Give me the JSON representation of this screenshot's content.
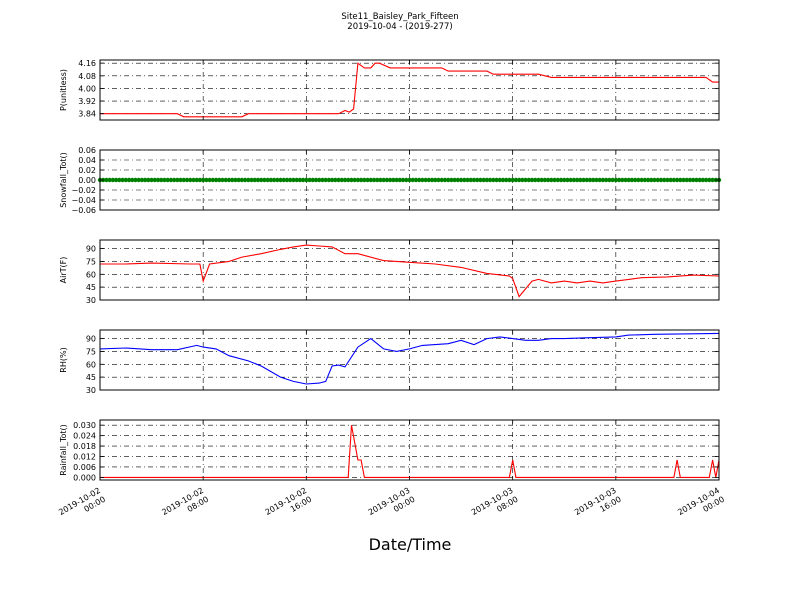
{
  "figure": {
    "title": "Site11_Baisley_Park_Fifteen",
    "subtitle": "2019-10-04 - (2019-277)",
    "xlabel": "Date/Time"
  },
  "chart_data": [
    {
      "type": "line",
      "ylabel": "P(unitless)",
      "ylim": [
        3.8,
        4.18
      ],
      "yticks": [
        "3.84",
        "3.92",
        "4.00",
        "4.08",
        "4.16"
      ],
      "grid": true,
      "series": [
        {
          "color": "#ff0000",
          "x": [
            "2019-10-02 00:00",
            "2019-10-02 06:00",
            "2019-10-02 06:30",
            "2019-10-02 11:00",
            "2019-10-02 11:30",
            "2019-10-02 14:00",
            "2019-10-02 18:30",
            "2019-10-02 19:00",
            "2019-10-02 19:20",
            "2019-10-02 19:40",
            "2019-10-02 20:00",
            "2019-10-02 20:30",
            "2019-10-02 21:00",
            "2019-10-02 21:20",
            "2019-10-02 21:40",
            "2019-10-02 22:30",
            "2019-10-03 02:30",
            "2019-10-03 03:00",
            "2019-10-03 06:00",
            "2019-10-03 06:30",
            "2019-10-03 10:00",
            "2019-10-03 11:00",
            "2019-10-03 20:00",
            "2019-10-03 23:00",
            "2019-10-03 23:30",
            "2019-10-04 00:00"
          ],
          "values": [
            3.84,
            3.84,
            3.82,
            3.82,
            3.84,
            3.84,
            3.84,
            3.86,
            3.85,
            3.87,
            4.16,
            4.13,
            4.13,
            4.16,
            4.16,
            4.13,
            4.13,
            4.11,
            4.11,
            4.09,
            4.09,
            4.07,
            4.07,
            4.07,
            4.04,
            4.04
          ]
        }
      ]
    },
    {
      "type": "scatter",
      "ylabel": "Snowfall_Tot()",
      "ylim": [
        -0.06,
        0.06
      ],
      "yticks": [
        "−0.06",
        "−0.04",
        "−0.02",
        "0.00",
        "0.02",
        "0.04",
        "0.06"
      ],
      "grid": true,
      "series": [
        {
          "color": "#008000",
          "x_start": "2019-10-02 00:00",
          "x_end": "2019-10-04 00:00",
          "interval_minutes": 15,
          "value": 0.0
        }
      ]
    },
    {
      "type": "line",
      "ylabel": "AirT(F)",
      "ylim": [
        30,
        100
      ],
      "yticks": [
        "30",
        "45",
        "60",
        "75",
        "90"
      ],
      "grid": true,
      "series": [
        {
          "color": "#ff0000",
          "x": [
            "2019-10-02 00:00",
            "2019-10-02 02:00",
            "2019-10-02 04:00",
            "2019-10-02 07:00",
            "2019-10-02 07:45",
            "2019-10-02 08:00",
            "2019-10-02 08:30",
            "2019-10-02 09:30",
            "2019-10-02 10:00",
            "2019-10-02 11:00",
            "2019-10-02 12:30",
            "2019-10-02 14:00",
            "2019-10-02 15:00",
            "2019-10-02 16:00",
            "2019-10-02 17:00",
            "2019-10-02 18:00",
            "2019-10-02 19:00",
            "2019-10-02 20:00",
            "2019-10-02 22:00",
            "2019-10-03 00:00",
            "2019-10-03 02:00",
            "2019-10-03 04:00",
            "2019-10-03 06:00",
            "2019-10-03 07:45",
            "2019-10-03 08:00",
            "2019-10-03 08:30",
            "2019-10-03 09:30",
            "2019-10-03 10:00",
            "2019-10-03 11:00",
            "2019-10-03 12:00",
            "2019-10-03 13:00",
            "2019-10-03 14:00",
            "2019-10-03 15:00",
            "2019-10-03 16:00",
            "2019-10-03 17:00",
            "2019-10-03 18:00",
            "2019-10-03 20:00",
            "2019-10-03 22:00",
            "2019-10-04 00:00"
          ],
          "values": [
            72,
            72,
            73,
            72,
            72,
            52,
            72,
            74,
            75,
            80,
            84,
            89,
            92,
            94,
            93,
            92,
            84,
            84,
            76,
            74,
            72,
            68,
            61,
            58,
            55,
            34,
            52,
            54,
            50,
            52,
            50,
            52,
            50,
            52,
            54,
            56,
            57,
            59,
            58
          ]
        }
      ]
    },
    {
      "type": "line",
      "ylabel": "RH(%)",
      "ylim": [
        30,
        100
      ],
      "yticks": [
        "30",
        "45",
        "60",
        "75",
        "90"
      ],
      "grid": true,
      "series": [
        {
          "color": "#0000ff",
          "x": [
            "2019-10-02 00:00",
            "2019-10-02 02:00",
            "2019-10-02 04:00",
            "2019-10-02 06:00",
            "2019-10-02 07:30",
            "2019-10-02 08:00",
            "2019-10-02 09:00",
            "2019-10-02 10:00",
            "2019-10-02 11:30",
            "2019-10-02 12:30",
            "2019-10-02 14:00",
            "2019-10-02 15:00",
            "2019-10-02 16:00",
            "2019-10-02 17:00",
            "2019-10-02 17:30",
            "2019-10-02 18:00",
            "2019-10-02 18:30",
            "2019-10-02 19:00",
            "2019-10-02 20:00",
            "2019-10-02 21:00",
            "2019-10-02 22:00",
            "2019-10-02 23:00",
            "2019-10-03 00:00",
            "2019-10-03 01:00",
            "2019-10-03 02:00",
            "2019-10-03 03:00",
            "2019-10-03 04:00",
            "2019-10-03 05:00",
            "2019-10-03 06:00",
            "2019-10-03 07:00",
            "2019-10-03 08:00",
            "2019-10-03 09:00",
            "2019-10-03 10:00",
            "2019-10-03 11:00",
            "2019-10-03 12:00",
            "2019-10-03 14:00",
            "2019-10-03 16:00",
            "2019-10-03 17:00",
            "2019-10-03 19:00",
            "2019-10-04 00:00"
          ],
          "values": [
            78,
            79,
            77,
            77,
            82,
            80,
            78,
            70,
            64,
            58,
            45,
            40,
            37,
            38,
            40,
            58,
            59,
            57,
            80,
            90,
            78,
            75,
            78,
            82,
            83,
            84,
            88,
            83,
            90,
            92,
            90,
            88,
            88,
            90,
            90,
            91,
            92,
            94,
            95,
            96
          ]
        }
      ]
    },
    {
      "type": "line",
      "ylabel": "Rainfall_Tot()",
      "ylim": [
        -0.0015,
        0.033
      ],
      "yticks": [
        "0.000",
        "0.006",
        "0.012",
        "0.018",
        "0.024",
        "0.030"
      ],
      "grid": true,
      "series": [
        {
          "color": "#ff0000",
          "x": [
            "2019-10-02 00:00",
            "2019-10-02 19:15",
            "2019-10-02 19:30",
            "2019-10-02 20:00",
            "2019-10-02 20:15",
            "2019-10-02 20:30",
            "2019-10-02 20:45",
            "2019-10-03 07:45",
            "2019-10-03 08:00",
            "2019-10-03 08:15",
            "2019-10-03 20:30",
            "2019-10-03 20:45",
            "2019-10-03 21:00",
            "2019-10-03 23:15",
            "2019-10-03 23:30",
            "2019-10-03 23:45",
            "2019-10-04 00:00"
          ],
          "values": [
            0,
            0,
            0.03,
            0.01,
            0.01,
            0,
            0,
            0,
            0.01,
            0,
            0,
            0.01,
            0,
            0,
            0.01,
            0,
            0.01
          ]
        }
      ]
    }
  ],
  "x_axis": {
    "ticks": [
      {
        "value": "2019-10-02 00:00",
        "line1": "2019-10-02",
        "line2": "00:00"
      },
      {
        "value": "2019-10-02 08:00",
        "line1": "2019-10-02",
        "line2": "08:00"
      },
      {
        "value": "2019-10-02 16:00",
        "line1": "2019-10-02",
        "line2": "16:00"
      },
      {
        "value": "2019-10-03 00:00",
        "line1": "2019-10-03",
        "line2": "00:00"
      },
      {
        "value": "2019-10-03 08:00",
        "line1": "2019-10-03",
        "line2": "08:00"
      },
      {
        "value": "2019-10-03 16:00",
        "line1": "2019-10-03",
        "line2": "16:00"
      },
      {
        "value": "2019-10-04 00:00",
        "line1": "2019-10-04",
        "line2": "00:00"
      }
    ]
  }
}
